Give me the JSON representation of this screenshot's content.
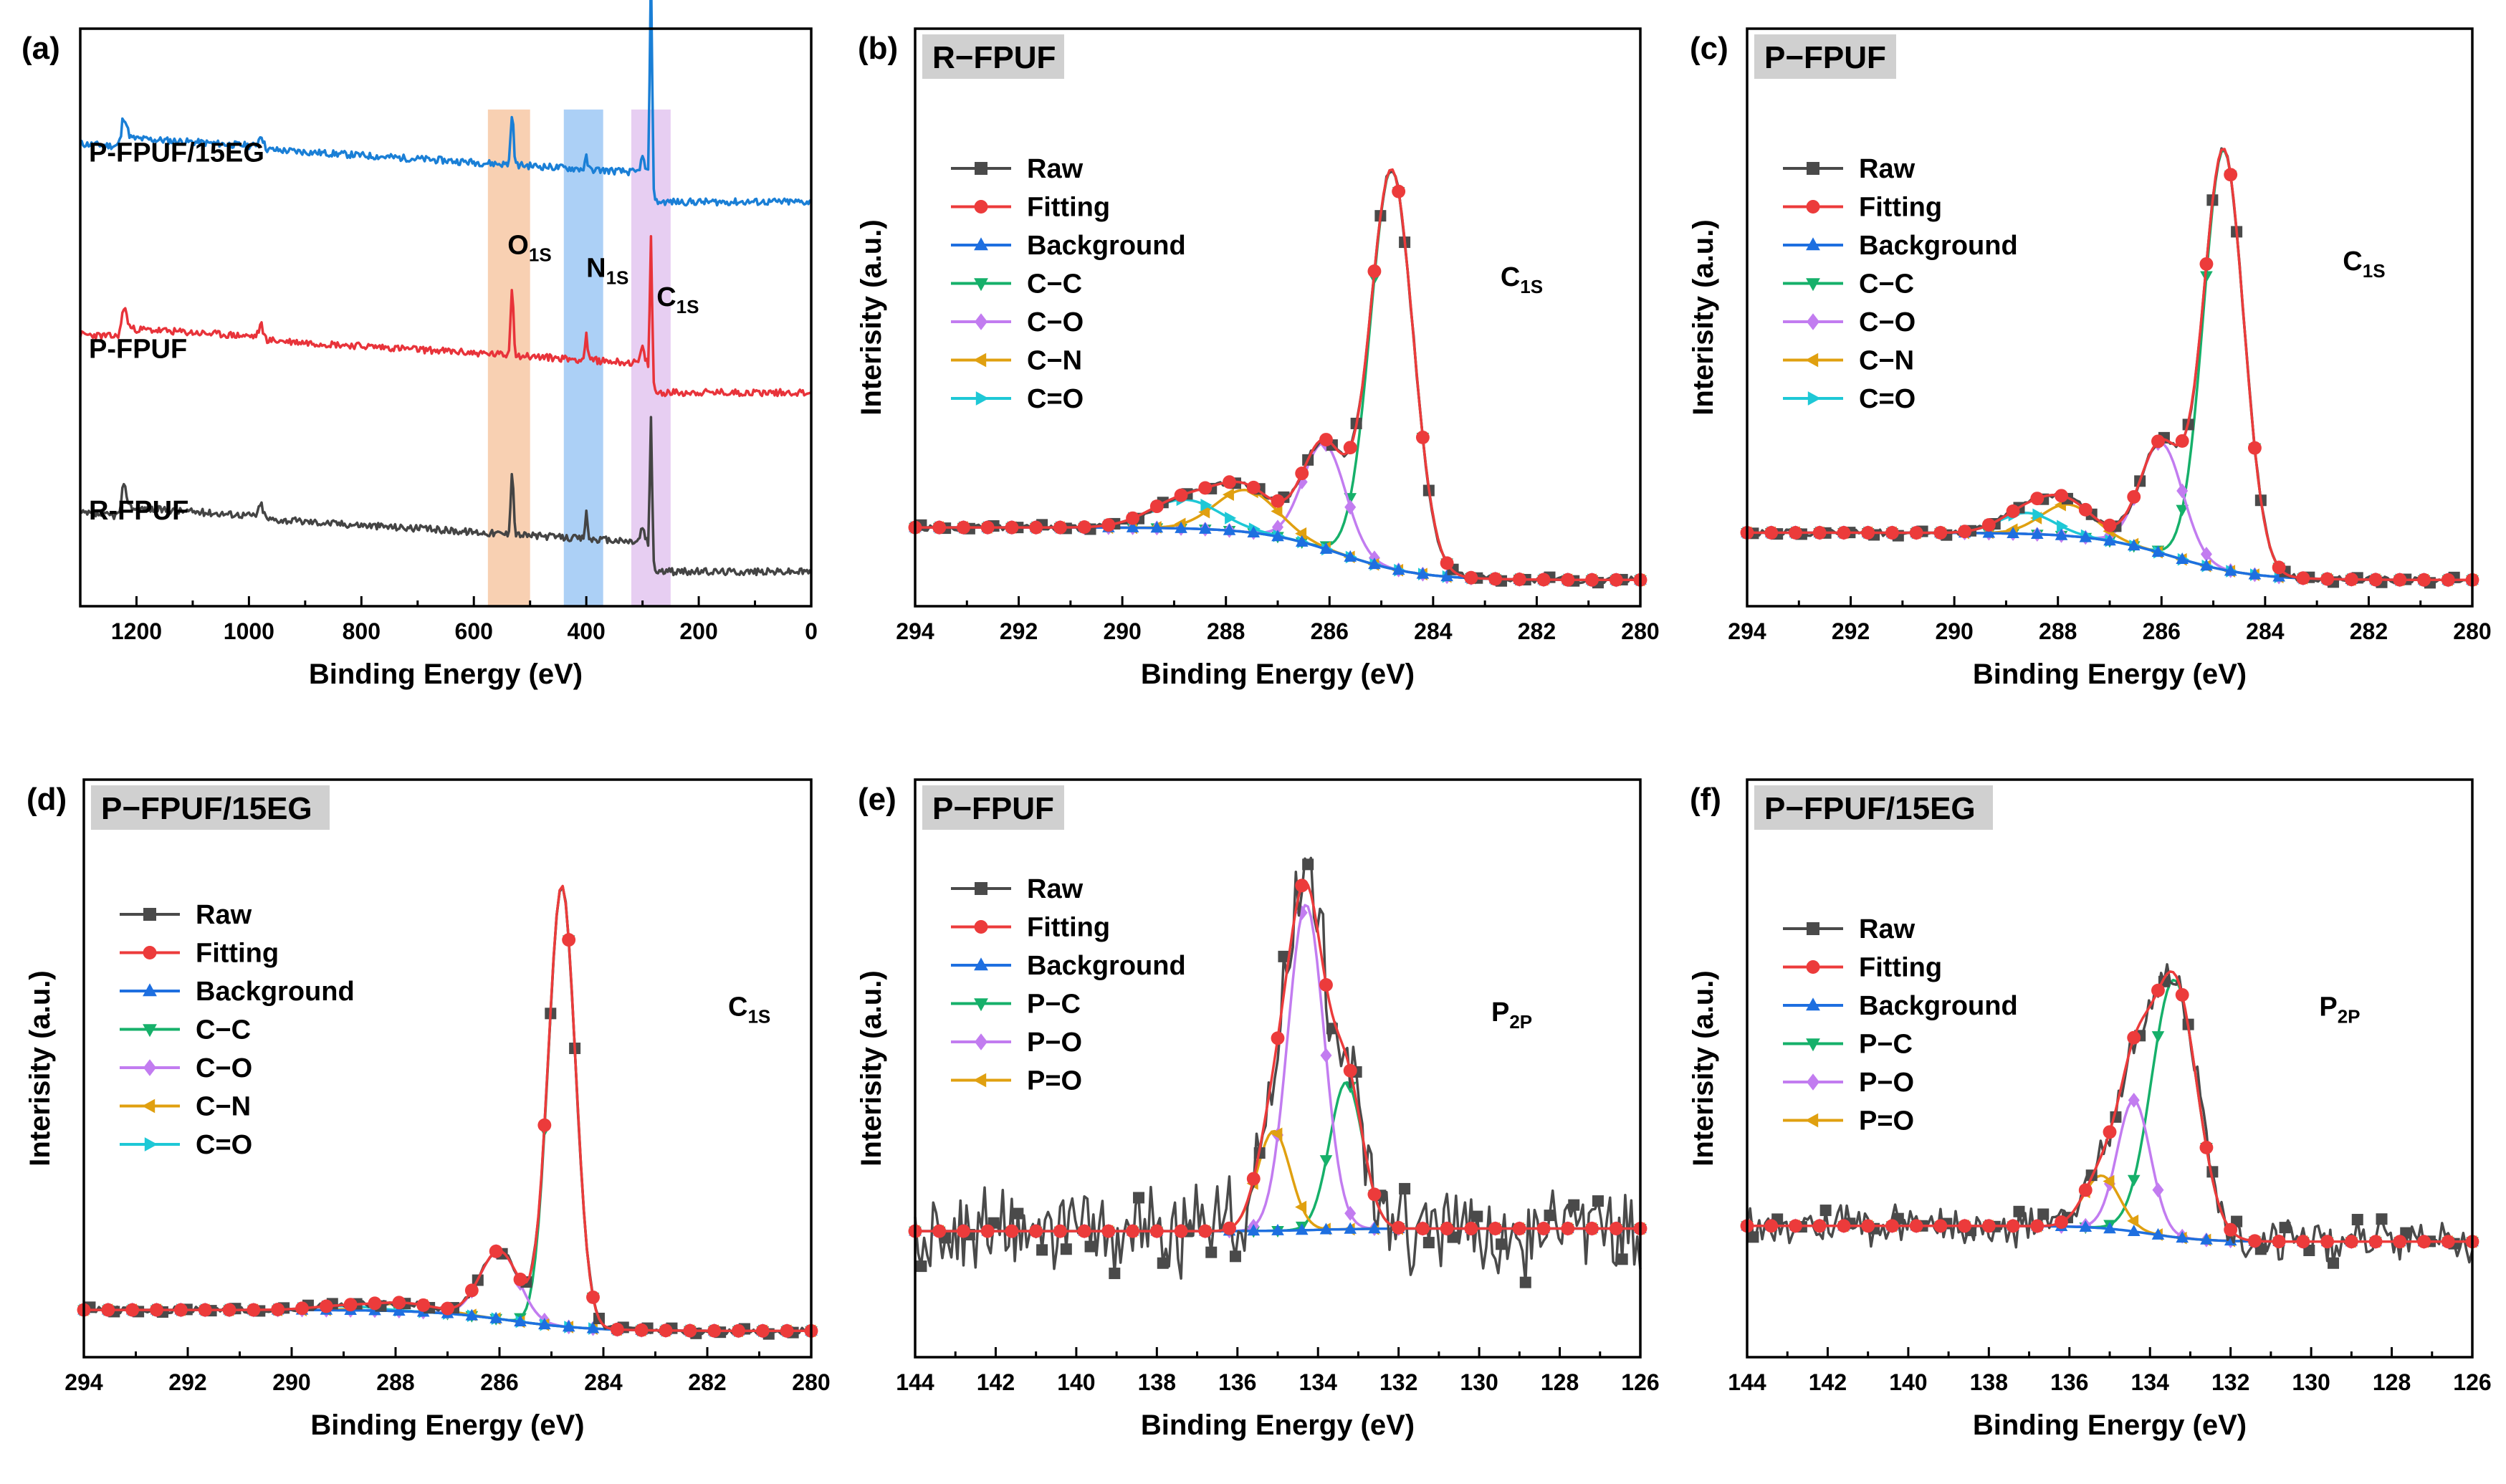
{
  "chart_data": [
    {
      "id": "a",
      "type": "line",
      "panel_label": "(a)",
      "title": "",
      "xlabel": "Binding Energy (eV)",
      "ylabel": "",
      "xlim": [
        1300,
        0
      ],
      "ylim": [
        0,
        100
      ],
      "xticks": [
        1200,
        1000,
        800,
        600,
        400,
        200,
        0
      ],
      "bands": [
        {
          "name": "O1s",
          "range": [
            575,
            500
          ],
          "color": "#f7c8a5"
        },
        {
          "name": "N1s",
          "range": [
            440,
            370
          ],
          "color": "#9ec8f5"
        },
        {
          "name": "C1s",
          "range": [
            320,
            250
          ],
          "color": "#e3c6f0"
        }
      ],
      "annotations": [
        {
          "main": "O",
          "sub": "1S",
          "x": 540,
          "y": 61
        },
        {
          "main": "N",
          "sub": "1S",
          "x": 400,
          "y": 57
        },
        {
          "main": "C",
          "sub": "1S",
          "x": 275,
          "y": 52
        }
      ],
      "series": [
        {
          "name": "P-FPUF/15EG",
          "color": "#1a7fd6",
          "offset": 70,
          "label_y": 77
        },
        {
          "name": "P-FPUF",
          "color": "#e8333a",
          "offset": 37,
          "label_y": 43
        },
        {
          "name": "R-FPUF",
          "color": "#444444",
          "offset": 6,
          "label_y": 15
        }
      ]
    },
    {
      "id": "b",
      "type": "line",
      "panel_label": "(b)",
      "title": "R−FPUF",
      "xlabel": "Binding Energy (eV)",
      "ylabel": "Interisity (a.u.)",
      "xlim": [
        294,
        280
      ],
      "ylim": [
        -5,
        105
      ],
      "xticks": [
        294,
        292,
        290,
        288,
        286,
        284,
        282,
        280
      ],
      "annotation": {
        "main": "C",
        "sub": "1S",
        "x": 282.7,
        "y": 56
      },
      "peaks": [
        {
          "name": "C−C",
          "center": 284.8,
          "height": 76,
          "width": 0.55
        },
        {
          "name": "C−O",
          "center": 286.1,
          "height": 20,
          "width": 0.55
        },
        {
          "name": "C−N",
          "center": 287.6,
          "height": 8,
          "width": 0.8
        },
        {
          "name": "C=O",
          "center": 288.8,
          "height": 5.5,
          "width": 0.9
        }
      ],
      "bg": {
        "left": 10,
        "right": 0,
        "center": 285.8,
        "k": 1.3
      },
      "legend": [
        {
          "name": "Raw",
          "color": "#4a4a4a",
          "marker": "square"
        },
        {
          "name": "Fitting",
          "color": "#ec3b3b",
          "marker": "circle"
        },
        {
          "name": "Background",
          "color": "#1e6fe0",
          "marker": "triangle-up"
        },
        {
          "name": "C−C",
          "color": "#16b06a",
          "marker": "triangle-down"
        },
        {
          "name": "C−O",
          "color": "#c27cf0",
          "marker": "diamond"
        },
        {
          "name": "C−N",
          "color": "#e0a010",
          "marker": "triangle-left"
        },
        {
          "name": "C=O",
          "color": "#1ec8d6",
          "marker": "triangle-right"
        }
      ]
    },
    {
      "id": "c",
      "type": "line",
      "panel_label": "(c)",
      "title": "P−FPUF",
      "xlabel": "Binding Energy (eV)",
      "ylabel": "Interisity (a.u.)",
      "xlim": [
        294,
        280
      ],
      "ylim": [
        -5,
        105
      ],
      "xticks": [
        294,
        292,
        290,
        288,
        286,
        284,
        282,
        280
      ],
      "annotation": {
        "main": "C",
        "sub": "1S",
        "x": 282.5,
        "y": 59
      },
      "peaks": [
        {
          "name": "C−C",
          "center": 284.8,
          "height": 80,
          "width": 0.52
        },
        {
          "name": "C−O",
          "center": 286.0,
          "height": 21,
          "width": 0.55
        },
        {
          "name": "C−N",
          "center": 287.8,
          "height": 6,
          "width": 0.7
        },
        {
          "name": "C=O",
          "center": 288.6,
          "height": 4,
          "width": 0.7
        }
      ],
      "bg": {
        "left": 9,
        "right": 0,
        "center": 285.8,
        "k": 1.3
      },
      "legend": [
        {
          "name": "Raw",
          "color": "#4a4a4a",
          "marker": "square"
        },
        {
          "name": "Fitting",
          "color": "#ec3b3b",
          "marker": "circle"
        },
        {
          "name": "Background",
          "color": "#1e6fe0",
          "marker": "triangle-up"
        },
        {
          "name": "C−C",
          "color": "#16b06a",
          "marker": "triangle-down"
        },
        {
          "name": "C−O",
          "color": "#c27cf0",
          "marker": "diamond"
        },
        {
          "name": "C−N",
          "color": "#e0a010",
          "marker": "triangle-left"
        },
        {
          "name": "C=O",
          "color": "#1ec8d6",
          "marker": "triangle-right"
        }
      ]
    },
    {
      "id": "d",
      "type": "line",
      "panel_label": "(d)",
      "title": "P−FPUF/15EG",
      "xlabel": "Binding Energy (eV)",
      "ylabel": "Interisity (a.u.)",
      "xlim": [
        294,
        280
      ],
      "ylim": [
        -5,
        105
      ],
      "xticks": [
        294,
        292,
        290,
        288,
        286,
        284,
        282,
        280
      ],
      "annotation": {
        "main": "C",
        "sub": "1S",
        "x": 281.6,
        "y": 60
      },
      "peaks": [
        {
          "name": "C−C",
          "center": 284.8,
          "height": 84,
          "width": 0.35
        },
        {
          "name": "C−O",
          "center": 286.0,
          "height": 13,
          "width": 0.5
        },
        {
          "name": "C−N",
          "center": 287.8,
          "height": 1.5,
          "width": 0.8
        },
        {
          "name": "C=O",
          "center": 289.0,
          "height": 0.8,
          "width": 0.8
        }
      ],
      "bg": {
        "left": 4,
        "right": 0,
        "center": 285.8,
        "k": 1.3
      },
      "legend": [
        {
          "name": "Raw",
          "color": "#4a4a4a",
          "marker": "square"
        },
        {
          "name": "Fitting",
          "color": "#ec3b3b",
          "marker": "circle"
        },
        {
          "name": "Background",
          "color": "#1e6fe0",
          "marker": "triangle-up"
        },
        {
          "name": "C−C",
          "color": "#16b06a",
          "marker": "triangle-down"
        },
        {
          "name": "C−O",
          "color": "#c27cf0",
          "marker": "diamond"
        },
        {
          "name": "C−N",
          "color": "#e0a010",
          "marker": "triangle-left"
        },
        {
          "name": "C=O",
          "color": "#1ec8d6",
          "marker": "triangle-right"
        }
      ]
    },
    {
      "id": "e",
      "type": "line",
      "panel_label": "(e)",
      "title": "P−FPUF",
      "xlabel": "Binding Energy (eV)",
      "ylabel": "Interisity (a.u.)",
      "xlim": [
        144,
        126
      ],
      "ylim": [
        -5,
        105
      ],
      "xticks": [
        144,
        142,
        140,
        138,
        136,
        134,
        132,
        130,
        128,
        126
      ],
      "annotation": {
        "main": "P",
        "sub": "2P",
        "x": 129.7,
        "y": 59
      },
      "peaks": [
        {
          "name": "P−C",
          "center": 133.3,
          "height": 28,
          "width": 0.55
        },
        {
          "name": "P−O",
          "center": 134.3,
          "height": 62,
          "width": 0.6
        },
        {
          "name": "P=O",
          "center": 135.1,
          "height": 19,
          "width": 0.55
        }
      ],
      "bg": {
        "left": 19,
        "right": 19.5,
        "center": 134,
        "k": 1.5
      },
      "noise": 7,
      "legend": [
        {
          "name": "Raw",
          "color": "#4a4a4a",
          "marker": "square"
        },
        {
          "name": "Fitting",
          "color": "#ec3b3b",
          "marker": "circle"
        },
        {
          "name": "Background",
          "color": "#1e6fe0",
          "marker": "triangle-up"
        },
        {
          "name": "P−C",
          "color": "#16b06a",
          "marker": "triangle-down"
        },
        {
          "name": "P−O",
          "color": "#c27cf0",
          "marker": "diamond"
        },
        {
          "name": "P=O",
          "color": "#e0a010",
          "marker": "triangle-left"
        }
      ]
    },
    {
      "id": "f",
      "type": "line",
      "panel_label": "(f)",
      "title": "P−FPUF/15EG",
      "xlabel": "Binding Energy (eV)",
      "ylabel": "Interisity (a.u.)",
      "xlim": [
        144,
        126
      ],
      "ylim": [
        -5,
        105
      ],
      "xticks": [
        144,
        142,
        140,
        138,
        136,
        134,
        132,
        130,
        128,
        126
      ],
      "annotation": {
        "main": "P",
        "sub": "2P",
        "x": 129.8,
        "y": 60
      },
      "peaks": [
        {
          "name": "P−C",
          "center": 133.4,
          "height": 49,
          "width": 0.75
        },
        {
          "name": "P−O",
          "center": 134.4,
          "height": 25,
          "width": 0.55
        },
        {
          "name": "P=O",
          "center": 135.2,
          "height": 10,
          "width": 0.6
        }
      ],
      "bg": {
        "left": 20,
        "right": 17,
        "center": 134,
        "k": 1.5
      },
      "noise": 3,
      "legend": [
        {
          "name": "Raw",
          "color": "#4a4a4a",
          "marker": "square"
        },
        {
          "name": "Fitting",
          "color": "#ec3b3b",
          "marker": "circle"
        },
        {
          "name": "Background",
          "color": "#1e6fe0",
          "marker": "triangle-up"
        },
        {
          "name": "P−C",
          "color": "#16b06a",
          "marker": "triangle-down"
        },
        {
          "name": "P−O",
          "color": "#c27cf0",
          "marker": "diamond"
        },
        {
          "name": "P=O",
          "color": "#e0a010",
          "marker": "triangle-left"
        }
      ]
    }
  ]
}
